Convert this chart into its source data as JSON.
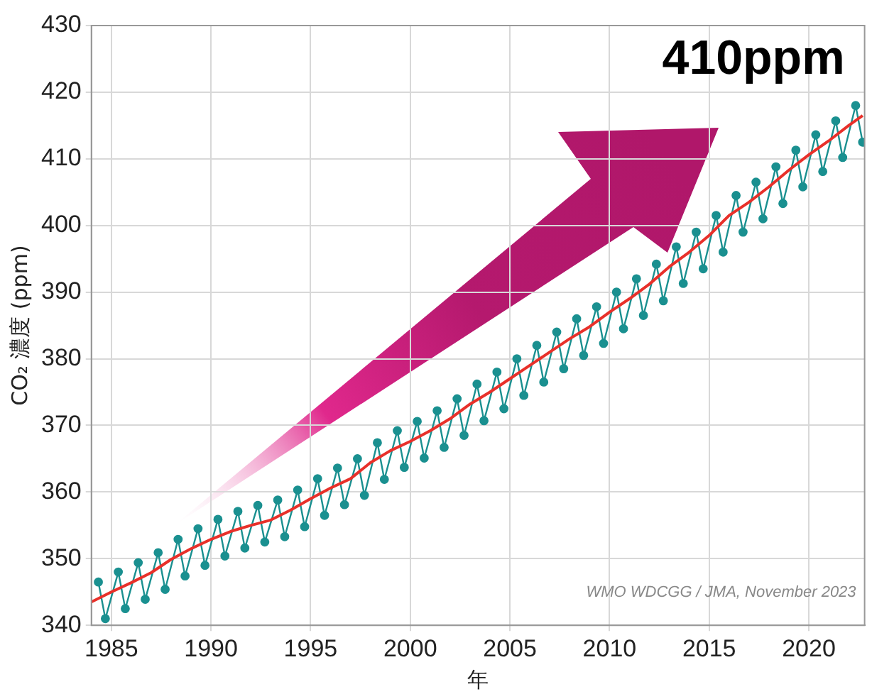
{
  "chart_data": {
    "type": "line",
    "xlabel": "年",
    "ylabel": "CO₂ 濃度 (ppm)",
    "xlim": [
      1984,
      2022.8
    ],
    "xticks": [
      1985,
      1990,
      1995,
      2000,
      2005,
      2010,
      2015,
      2020
    ],
    "ylim": [
      340,
      430
    ],
    "yticks": [
      340,
      350,
      360,
      370,
      380,
      390,
      400,
      410,
      420,
      430
    ],
    "grid": true,
    "annotations": [
      "410ppm",
      "WMO WDCGG / JMA, November 2023"
    ],
    "series": [
      {
        "color": "#1a9090",
        "marker": "circle",
        "x": [
          1984.35,
          1984.7,
          1985.35,
          1985.7,
          1986.35,
          1986.7,
          1987.35,
          1987.7,
          1988.35,
          1988.7,
          1989.35,
          1989.7,
          1990.35,
          1990.7,
          1991.35,
          1991.7,
          1992.35,
          1992.7,
          1993.35,
          1993.7,
          1994.35,
          1994.7,
          1995.35,
          1995.7,
          1996.35,
          1996.7,
          1997.35,
          1997.7,
          1998.35,
          1998.7,
          1999.35,
          1999.7,
          2000.35,
          2000.7,
          2001.35,
          2001.7,
          2002.35,
          2002.7,
          2003.35,
          2003.7,
          2004.35,
          2004.7,
          2005.35,
          2005.7,
          2006.35,
          2006.7,
          2007.35,
          2007.7,
          2008.35,
          2008.7,
          2009.35,
          2009.7,
          2010.35,
          2010.7,
          2011.35,
          2011.7,
          2012.35,
          2012.7,
          2013.35,
          2013.7,
          2014.35,
          2014.7,
          2015.35,
          2015.7,
          2016.35,
          2016.7,
          2017.35,
          2017.7,
          2018.35,
          2018.7,
          2019.35,
          2019.7,
          2020.35,
          2020.7,
          2021.35,
          2021.7,
          2022.35,
          2022.7
        ],
        "values": [
          346.5,
          341.0,
          348.0,
          342.5,
          349.4,
          343.9,
          350.9,
          345.4,
          352.9,
          347.4,
          354.5,
          349.0,
          355.9,
          350.4,
          357.1,
          351.6,
          358.0,
          352.5,
          358.8,
          353.3,
          360.3,
          354.8,
          362.0,
          356.5,
          363.6,
          358.1,
          365.0,
          359.5,
          367.4,
          361.9,
          369.2,
          363.7,
          370.6,
          365.1,
          372.2,
          366.7,
          374.0,
          368.5,
          376.2,
          370.7,
          378.0,
          372.5,
          380.0,
          374.5,
          382.0,
          376.5,
          384.0,
          378.5,
          386.0,
          380.5,
          387.8,
          382.3,
          390.0,
          384.5,
          392.0,
          386.5,
          394.2,
          388.7,
          396.8,
          391.3,
          399.0,
          393.5,
          401.5,
          396.0,
          404.5,
          399.0,
          406.5,
          401.0,
          408.8,
          403.3,
          411.3,
          405.8,
          413.6,
          408.1,
          415.7,
          410.2,
          418.0,
          412.5
        ]
      },
      {
        "color": "#e8302a",
        "marker": "none",
        "x": [
          1984,
          1985,
          1986,
          1987,
          1988,
          1989,
          1990,
          1991,
          1992,
          1993,
          1994,
          1995,
          1996,
          1997,
          1998,
          1999,
          2000,
          2001,
          2002,
          2003,
          2004,
          2005,
          2006,
          2007,
          2008,
          2009,
          2010,
          2011,
          2012,
          2013,
          2014,
          2015,
          2016,
          2017,
          2018,
          2019,
          2020,
          2021,
          2022,
          2022.7
        ],
        "values": [
          343.5,
          345.0,
          346.4,
          347.9,
          349.9,
          351.5,
          352.9,
          354.1,
          355.0,
          355.8,
          357.3,
          359.0,
          360.6,
          362.0,
          364.4,
          366.2,
          367.6,
          369.2,
          371.0,
          373.2,
          375.0,
          377.0,
          379.0,
          381.0,
          383.0,
          384.8,
          387.0,
          389.0,
          391.2,
          393.8,
          396.0,
          398.5,
          401.5,
          403.5,
          405.8,
          408.3,
          410.6,
          412.7,
          415.0,
          416.5
        ]
      }
    ]
  }
}
